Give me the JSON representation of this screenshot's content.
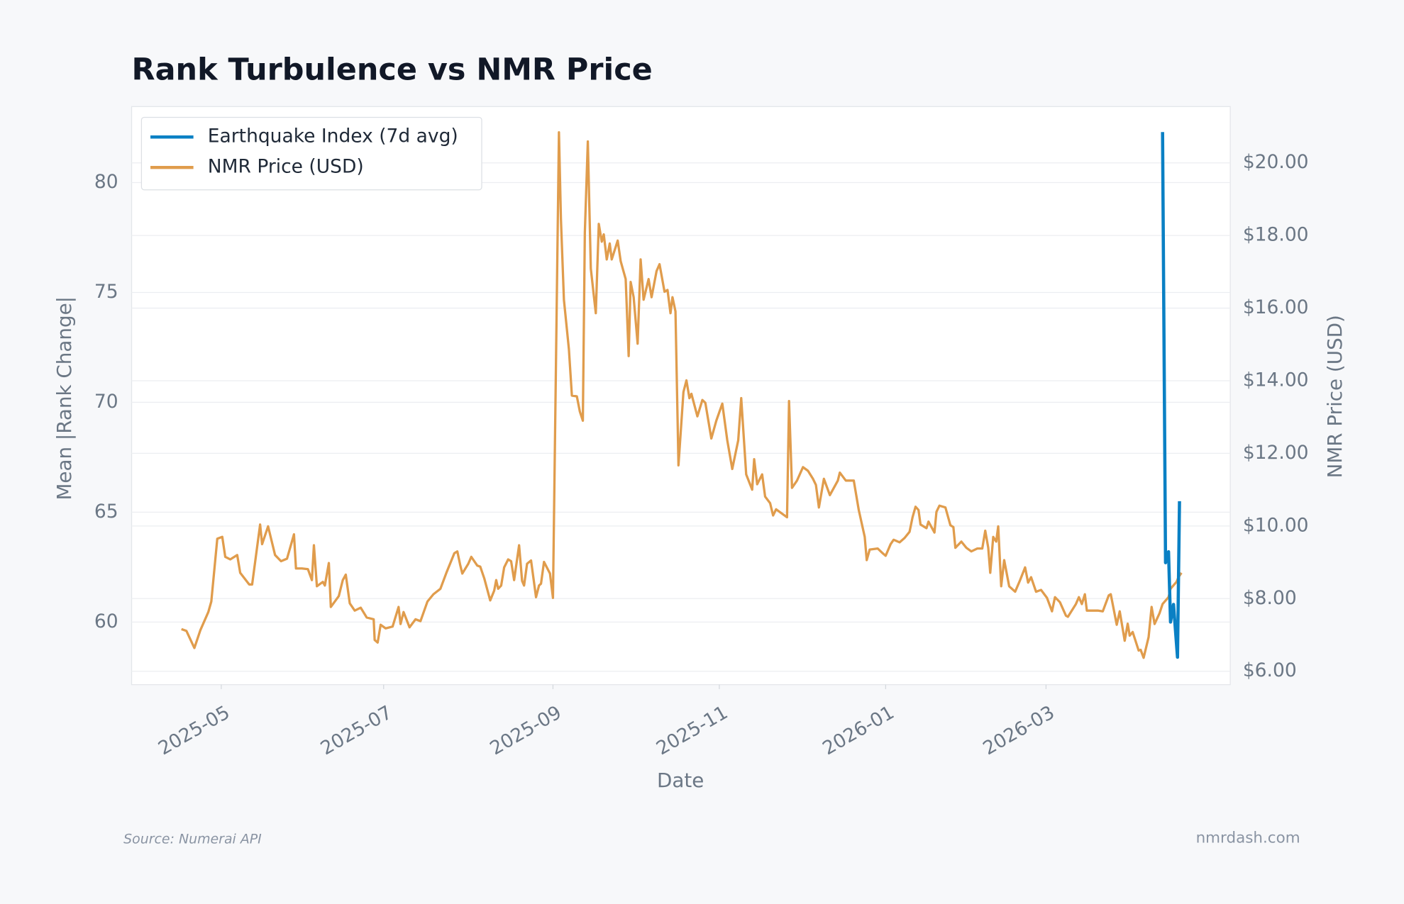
{
  "chart_data": {
    "type": "line",
    "title": "Rank Turbulence vs NMR Price",
    "xlabel": "Date",
    "ylabel": "Mean |Rank Change|",
    "y2label": "NMR Price (USD)",
    "xlim": [
      2025.243,
      2026.346
    ],
    "xticks": [
      {
        "value": 2025.333,
        "label": "2025-05"
      },
      {
        "value": 2025.496,
        "label": "2025-07"
      },
      {
        "value": 2025.666,
        "label": "2025-09"
      },
      {
        "value": 2025.833,
        "label": "2025-11"
      },
      {
        "value": 2026.0,
        "label": "2026-01"
      },
      {
        "value": 2026.161,
        "label": "2026-03"
      }
    ],
    "ylim": [
      57.15,
      83.46
    ],
    "yticks": [
      60,
      65,
      70,
      75,
      80
    ],
    "y2lim": [
      5.63,
      21.55
    ],
    "y2ticks": [
      {
        "value": 6,
        "label": "$6.00"
      },
      {
        "value": 8,
        "label": "$8.00"
      },
      {
        "value": 10,
        "label": "$10.00"
      },
      {
        "value": 12,
        "label": "$12.00"
      },
      {
        "value": 14,
        "label": "$14.00"
      },
      {
        "value": 16,
        "label": "$16.00"
      },
      {
        "value": 18,
        "label": "$18.00"
      },
      {
        "value": 20,
        "label": "$20.00"
      }
    ],
    "grid": true,
    "legend": "upper left",
    "series": [
      {
        "name": "Earthquake Index (7d avg)",
        "color": "#0a80c4",
        "x": [
          2026.278,
          2026.281,
          2026.284,
          2026.286,
          2026.289,
          2026.293,
          2026.295
        ],
        "values": [
          82.3,
          62.7,
          63.2,
          60.0,
          60.8,
          58.4,
          65.5
        ]
      },
      {
        "name": "NMR Price (USD)",
        "color": "#e09c4c",
        "axis": "y2",
        "x": [
          2025.293,
          2025.298,
          2025.306,
          2025.312,
          2025.32,
          2025.323,
          2025.329,
          2025.334,
          2025.337,
          2025.342,
          2025.349,
          2025.352,
          2025.361,
          2025.364,
          2025.372,
          2025.374,
          2025.38,
          2025.387,
          2025.393,
          2025.399,
          2025.406,
          2025.408,
          2025.414,
          2025.42,
          2025.424,
          2025.426,
          2025.429,
          2025.435,
          2025.437,
          2025.441,
          2025.443,
          2025.451,
          2025.455,
          2025.458,
          2025.462,
          2025.467,
          2025.473,
          2025.479,
          2025.486,
          2025.487,
          2025.49,
          2025.493,
          2025.498,
          2025.505,
          2025.511,
          2025.513,
          2025.516,
          2025.522,
          2025.528,
          2025.533,
          2025.54,
          2025.546,
          2025.553,
          2025.559,
          2025.567,
          2025.57,
          2025.573,
          2025.575,
          2025.581,
          2025.584,
          2025.59,
          2025.593,
          2025.597,
          2025.603,
          2025.607,
          2025.609,
          2025.611,
          2025.614,
          2025.617,
          2025.621,
          2025.624,
          2025.627,
          2025.632,
          2025.635,
          2025.637,
          2025.64,
          2025.644,
          2025.649,
          2025.652,
          2025.654,
          2025.657,
          2025.663,
          2025.666,
          2025.672,
          2025.674,
          2025.677,
          2025.682,
          2025.685,
          2025.69,
          2025.693,
          2025.696,
          2025.698,
          2025.701,
          2025.704,
          2025.707,
          2025.709,
          2025.712,
          2025.715,
          2025.717,
          2025.72,
          2025.723,
          2025.725,
          2025.731,
          2025.734,
          2025.739,
          2025.742,
          2025.744,
          2025.747,
          2025.751,
          2025.754,
          2025.757,
          2025.762,
          2025.765,
          2025.77,
          2025.773,
          2025.778,
          2025.781,
          2025.784,
          2025.786,
          2025.789,
          2025.792,
          2025.797,
          2025.8,
          2025.803,
          2025.805,
          2025.811,
          2025.816,
          2025.819,
          2025.825,
          2025.83,
          2025.836,
          2025.841,
          2025.846,
          2025.852,
          2025.855,
          2025.86,
          2025.866,
          2025.868,
          2025.871,
          2025.876,
          2025.879,
          2025.884,
          2025.887,
          2025.89,
          2025.895,
          2025.901,
          2025.903,
          2025.906,
          2025.911,
          2025.917,
          2025.922,
          2025.927,
          2025.93,
          2025.933,
          2025.938,
          2025.944,
          2025.952,
          2025.954,
          2025.96,
          2025.968,
          2025.973,
          2025.979,
          2025.981,
          2025.984,
          2025.992,
          2025.997,
          2026.0,
          2026.005,
          2026.008,
          2026.014,
          2026.019,
          2026.024,
          2026.027,
          2026.03,
          2026.033,
          2026.035,
          2026.041,
          2026.043,
          2026.049,
          2026.051,
          2026.054,
          2026.06,
          2026.065,
          2026.068,
          2026.07,
          2026.076,
          2026.081,
          2026.086,
          2026.092,
          2026.097,
          2026.1,
          2026.103,
          2026.105,
          2026.108,
          2026.111,
          2026.113,
          2026.116,
          2026.119,
          2026.124,
          2026.13,
          2026.135,
          2026.14,
          2026.143,
          2026.146,
          2026.151,
          2026.156,
          2026.162,
          2026.167,
          2026.17,
          2026.175,
          2026.181,
          2026.183,
          2026.191,
          2026.194,
          2026.197,
          2026.2,
          2026.202,
          2026.208,
          2026.213,
          2026.218,
          2026.224,
          2026.226,
          2026.232,
          2026.235,
          2026.24,
          2026.243,
          2026.245,
          2026.248,
          2026.254,
          2026.256,
          2026.259,
          2026.264,
          2026.267,
          2026.27,
          2026.275,
          2026.278,
          2026.284,
          2026.286,
          2026.292,
          2026.294,
          2026.297
        ],
        "values": [
          7.16,
          7.11,
          6.64,
          7.13,
          7.63,
          7.92,
          9.65,
          9.7,
          9.15,
          9.08,
          9.2,
          8.71,
          8.39,
          8.39,
          10.04,
          9.5,
          9.99,
          9.2,
          9.03,
          9.1,
          9.77,
          8.83,
          8.83,
          8.81,
          8.51,
          9.47,
          8.34,
          8.46,
          8.36,
          8.98,
          7.77,
          8.07,
          8.51,
          8.66,
          7.87,
          7.67,
          7.75,
          7.48,
          7.43,
          6.86,
          6.79,
          7.28,
          7.18,
          7.23,
          7.77,
          7.3,
          7.63,
          7.21,
          7.43,
          7.38,
          7.92,
          8.12,
          8.27,
          8.71,
          9.25,
          9.3,
          8.91,
          8.69,
          8.96,
          9.15,
          8.91,
          8.88,
          8.56,
          7.95,
          8.22,
          8.51,
          8.27,
          8.36,
          8.86,
          9.08,
          9.03,
          8.51,
          9.47,
          8.49,
          8.36,
          8.96,
          9.05,
          8.04,
          8.36,
          8.41,
          9.01,
          8.69,
          8.02,
          20.84,
          18.45,
          16.23,
          14.87,
          13.59,
          13.57,
          13.15,
          12.9,
          18.08,
          20.59,
          17.09,
          16.35,
          15.86,
          18.32,
          17.83,
          18.03,
          17.34,
          17.78,
          17.34,
          17.86,
          17.29,
          16.8,
          14.68,
          16.72,
          16.3,
          15.02,
          17.34,
          16.23,
          16.8,
          16.3,
          17.02,
          17.21,
          16.45,
          16.5,
          15.86,
          16.3,
          15.91,
          11.67,
          13.69,
          14.01,
          13.52,
          13.64,
          13.02,
          13.47,
          13.39,
          12.41,
          12.9,
          13.37,
          12.36,
          11.57,
          12.36,
          13.52,
          11.42,
          11.0,
          11.84,
          11.15,
          11.42,
          10.81,
          10.63,
          10.29,
          10.46,
          10.36,
          10.24,
          13.44,
          11.05,
          11.25,
          11.62,
          11.52,
          11.3,
          11.13,
          10.51,
          11.3,
          10.85,
          11.25,
          11.47,
          11.25,
          11.25,
          10.44,
          9.7,
          9.06,
          9.35,
          9.38,
          9.25,
          9.18,
          9.5,
          9.62,
          9.55,
          9.67,
          9.84,
          10.24,
          10.53,
          10.44,
          10.04,
          9.94,
          10.12,
          9.82,
          10.39,
          10.56,
          10.51,
          10.02,
          9.97,
          9.4,
          9.57,
          9.4,
          9.3,
          9.38,
          9.38,
          9.87,
          9.4,
          8.71,
          9.7,
          9.57,
          9.99,
          8.34,
          9.06,
          8.34,
          8.19,
          8.51,
          8.86,
          8.44,
          8.59,
          8.19,
          8.24,
          8.02,
          7.65,
          8.04,
          7.9,
          7.53,
          7.5,
          7.85,
          8.04,
          7.85,
          8.12,
          7.67,
          7.67,
          7.67,
          7.65,
          8.09,
          8.12,
          7.28,
          7.65,
          6.84,
          7.31,
          6.98,
          7.08,
          6.57,
          6.59,
          6.37,
          6.94,
          7.77,
          7.3,
          7.6,
          7.85,
          8.04,
          8.27,
          8.46,
          8.59,
          8.71
        ]
      }
    ]
  },
  "footer": {
    "source": "Source: Numerai API",
    "site": "nmrdash.com"
  }
}
